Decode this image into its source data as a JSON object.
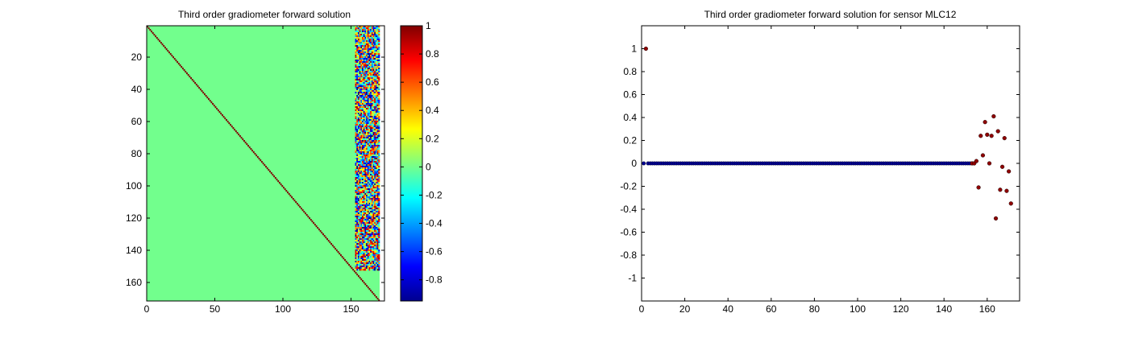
{
  "chart_data": [
    {
      "type": "heatmap",
      "title": "Third order gradiometer forward solution",
      "xlabel": "",
      "ylabel": "",
      "rows": 171,
      "cols": 171,
      "xlim": [
        0,
        171
      ],
      "ylim": [
        171,
        1
      ],
      "xticks": [
        0,
        50,
        100,
        150
      ],
      "yticks": [
        20,
        40,
        60,
        80,
        100,
        120,
        140,
        160
      ],
      "background_value": 0,
      "diagonal_value": 1,
      "structure": "identity diagonal plus reference-sensor coefficient block",
      "reference_block": {
        "col_start": 154,
        "col_end": 171,
        "row_start": 1,
        "row_end": 152,
        "value_range": [
          -0.95,
          1
        ]
      },
      "colorbar": {
        "colormap": "jet",
        "range": [
          -0.95,
          1
        ],
        "ticks": [
          -0.8,
          -0.6,
          -0.4,
          -0.2,
          0,
          0.2,
          0.4,
          0.6,
          0.8,
          1
        ],
        "tick_labels": [
          "-0.8",
          "-0.6",
          "-0.4",
          "-0.2",
          "0",
          "0.2",
          "0.4",
          "0.6",
          "0.8",
          "1"
        ]
      }
    },
    {
      "type": "scatter",
      "title": "Third order gradiometer forward solution for sensor MLC12",
      "xlabel": "",
      "ylabel": "",
      "xlim": [
        0,
        175
      ],
      "ylim": [
        -1.2,
        1.2
      ],
      "xticks": [
        0,
        20,
        40,
        60,
        80,
        100,
        120,
        140,
        160
      ],
      "yticks": [
        -1,
        -0.8,
        -0.6,
        -0.4,
        -0.2,
        0,
        0.2,
        0.4,
        0.6,
        0.8,
        1
      ],
      "ytick_labels": [
        "-1",
        "-0.8",
        "-0.6",
        "-0.4",
        "-0.2",
        "0",
        "0.2",
        "0.4",
        "0.6",
        "0.8",
        "1"
      ],
      "zero_series": {
        "x_start": 1,
        "x_end": 152,
        "y": 0,
        "color": "#00008f"
      },
      "points": [
        {
          "x": 2,
          "y": 1.0
        },
        {
          "x": 153,
          "y": 0.0
        },
        {
          "x": 154,
          "y": 0.0
        },
        {
          "x": 155,
          "y": 0.02
        },
        {
          "x": 156,
          "y": -0.21
        },
        {
          "x": 157,
          "y": 0.24
        },
        {
          "x": 158,
          "y": 0.07
        },
        {
          "x": 159,
          "y": 0.36
        },
        {
          "x": 160,
          "y": 0.25
        },
        {
          "x": 161,
          "y": 0.0
        },
        {
          "x": 162,
          "y": 0.24
        },
        {
          "x": 163,
          "y": 0.41
        },
        {
          "x": 164,
          "y": -0.48
        },
        {
          "x": 165,
          "y": 0.28
        },
        {
          "x": 166,
          "y": -0.23
        },
        {
          "x": 167,
          "y": -0.03
        },
        {
          "x": 168,
          "y": 0.22
        },
        {
          "x": 169,
          "y": -0.24
        },
        {
          "x": 170,
          "y": -0.07
        },
        {
          "x": 171,
          "y": -0.35
        }
      ],
      "point_color": "#8f0000"
    }
  ]
}
